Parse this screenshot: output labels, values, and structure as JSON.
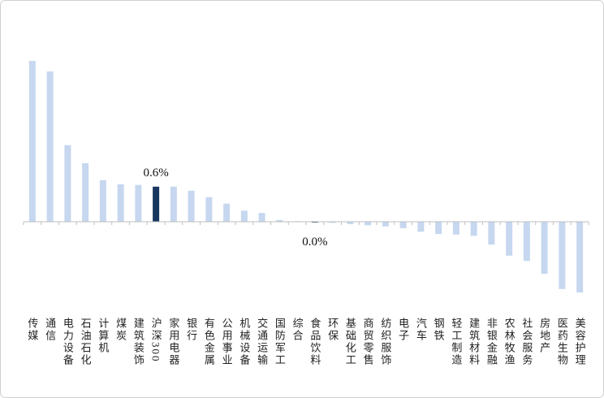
{
  "chart_data": {
    "type": "bar",
    "categories": [
      "传媒",
      "通信",
      "电力设备",
      "石油石化",
      "计算机",
      "煤炭",
      "建筑装饰",
      "沪深300",
      "家用电器",
      "银行",
      "有色金属",
      "公用事业",
      "机械设备",
      "交通运输",
      "国防军工",
      "综合",
      "食品饮料",
      "环保",
      "基础化工",
      "商贸零售",
      "纺织服饰",
      "电子",
      "汽车",
      "钢铁",
      "轻工制造",
      "建筑材料",
      "非银金融",
      "农林牧渔",
      "社会服务",
      "房地产",
      "医药生物",
      "美容护理"
    ],
    "values": [
      2.75,
      2.57,
      1.31,
      1.0,
      0.71,
      0.64,
      0.63,
      0.6,
      0.6,
      0.53,
      0.42,
      0.31,
      0.19,
      0.15,
      0.03,
      0.01,
      0.0,
      -0.02,
      -0.04,
      -0.06,
      -0.08,
      -0.11,
      -0.17,
      -0.21,
      -0.22,
      -0.24,
      -0.39,
      -0.58,
      -0.67,
      -0.89,
      -1.15,
      -1.21
    ],
    "value_labels": [
      null,
      null,
      null,
      null,
      null,
      null,
      null,
      "0.6%",
      null,
      null,
      null,
      null,
      null,
      null,
      null,
      null,
      "0.0%",
      null,
      null,
      null,
      null,
      null,
      null,
      null,
      null,
      null,
      null,
      null,
      null,
      null,
      null,
      null
    ],
    "colors": [
      "#c6d7ef",
      "#c6d7ef",
      "#c6d7ef",
      "#c6d7ef",
      "#c6d7ef",
      "#c6d7ef",
      "#c6d7ef",
      "#17375e",
      "#c6d7ef",
      "#c6d7ef",
      "#c6d7ef",
      "#c6d7ef",
      "#c6d7ef",
      "#c6d7ef",
      "#c6d7ef",
      "#c6d7ef",
      "#17375e",
      "#c6d7ef",
      "#c6d7ef",
      "#c6d7ef",
      "#c6d7ef",
      "#c6d7ef",
      "#c6d7ef",
      "#c6d7ef",
      "#c6d7ef",
      "#c6d7ef",
      "#c6d7ef",
      "#c6d7ef",
      "#c6d7ef",
      "#c6d7ef",
      "#c6d7ef",
      "#c6d7ef"
    ]
  }
}
